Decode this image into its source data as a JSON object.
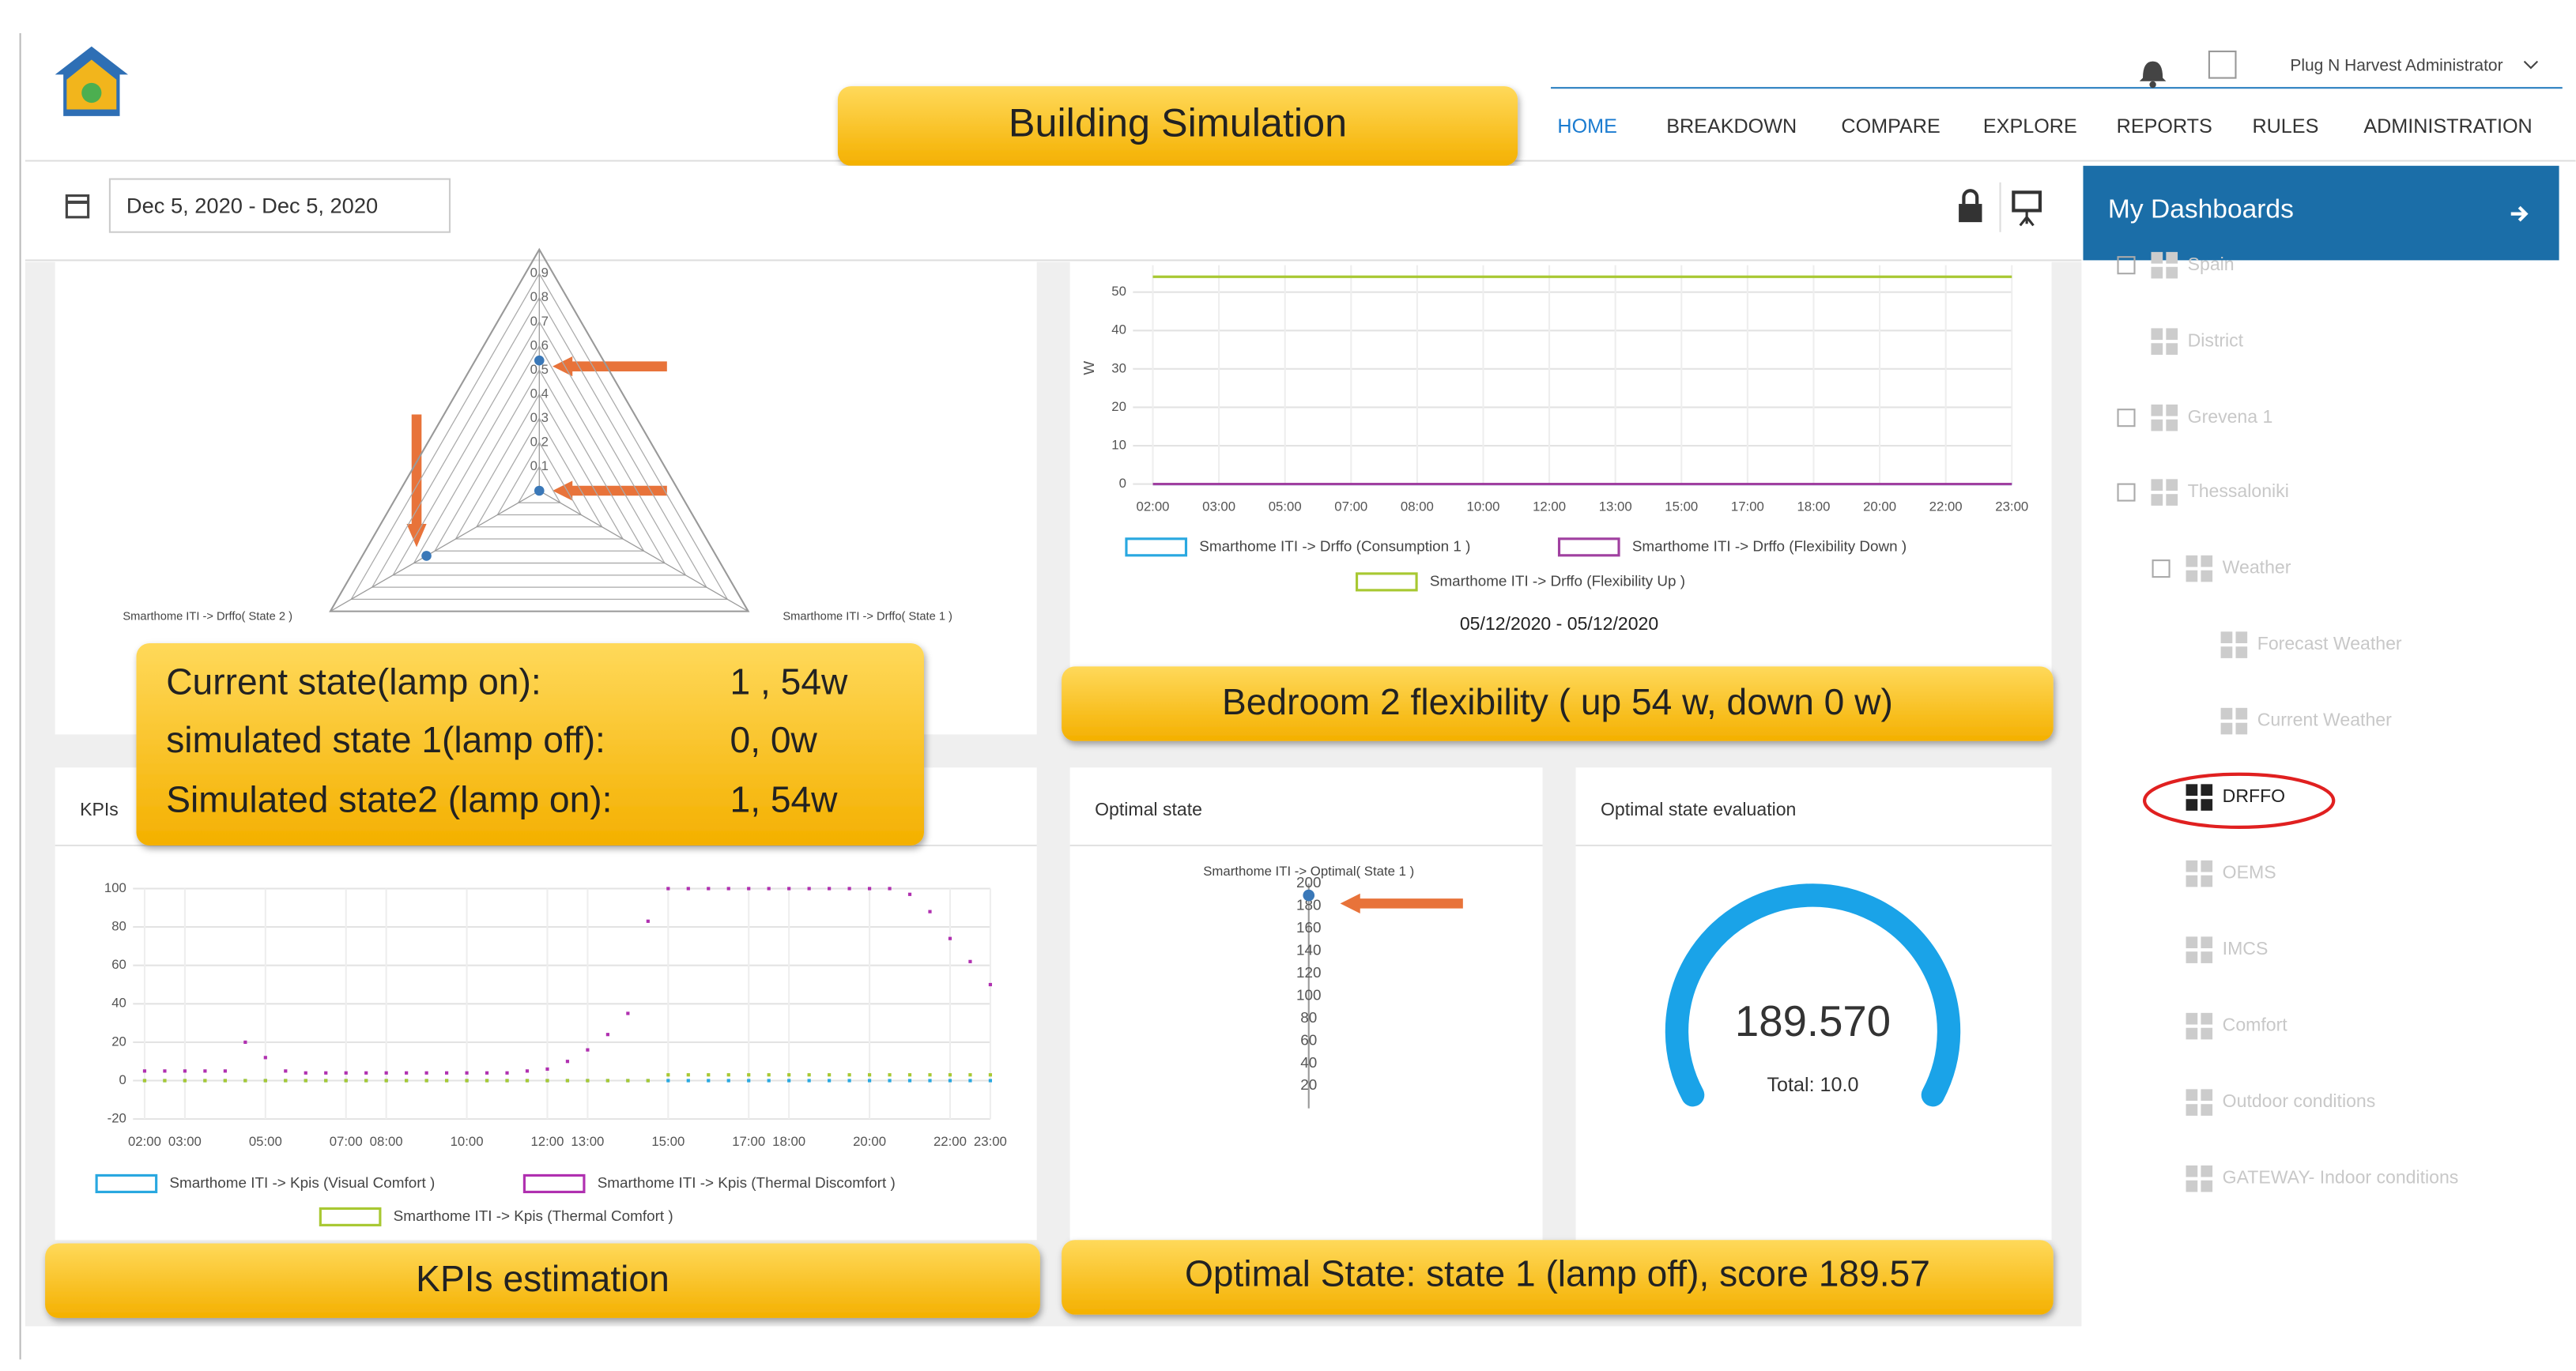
{
  "header": {
    "title": "Building Simulation",
    "user": "Plug N Harvest Administrator",
    "nav": [
      "HOME",
      "BREAKDOWN",
      "COMPARE",
      "EXPLORE",
      "REPORTS",
      "RULES",
      "ADMINISTRATION"
    ]
  },
  "toolbar": {
    "date_range": "Dec 5, 2020 - Dec 5, 2020"
  },
  "sidebar": {
    "title": "My Dashboards",
    "items": [
      "Spain",
      "District",
      "Grevena 1",
      "Thessaloniki",
      "Weather",
      "Forecast Weather",
      "Current Weather",
      "DRFFO",
      "OEMS",
      "IMCS",
      "Comfort",
      "Outdoor conditions",
      "GATEWAY- Indoor conditions"
    ]
  },
  "radar": {
    "categories": [
      null,
      "Smarthome ITI -> Drffo( State 1 )",
      "Smarthome ITI -> Drffo( State 2 )"
    ],
    "values": [
      0.54,
      0,
      0.54
    ],
    "color": "#3a78b8",
    "rlim": [
      0,
      1
    ],
    "ticks": [
      0.1,
      0.2,
      0.3,
      0.4,
      0.5,
      0.6,
      0.7,
      0.8,
      0.9
    ]
  },
  "flex": {
    "y_label": "W",
    "subtitle": "05/12/2020 - 05/12/2020",
    "categories": [
      "02:00",
      "03:00",
      "05:00",
      "07:00",
      "08:00",
      "10:00",
      "12:00",
      "13:00",
      "15:00",
      "17:00",
      "18:00",
      "20:00",
      "22:00",
      "23:00"
    ],
    "ylim": [
      0,
      57
    ],
    "yticks": [
      0,
      10,
      20,
      30,
      40,
      50
    ],
    "series": [
      {
        "name": "Smarthome ITI -> Drffo (Consumption 1 )",
        "color": "#29a8e0",
        "values": [
          0,
          0,
          0,
          0,
          0,
          0,
          0,
          0,
          0,
          0,
          0,
          0,
          0,
          0
        ]
      },
      {
        "name": "Smarthome ITI -> Drffo (Flexibility Down )",
        "color": "#a040a0",
        "values": [
          0,
          0,
          0,
          0,
          0,
          0,
          0,
          0,
          0,
          0,
          0,
          0,
          0,
          0
        ]
      },
      {
        "name": "Smarthome ITI -> Drffo (Flexibility Up )",
        "color": "#a8c832",
        "values": [
          54,
          54,
          54,
          54,
          54,
          54,
          54,
          54,
          54,
          54,
          54,
          54,
          54,
          54
        ]
      }
    ]
  },
  "kpi": {
    "title": "KPIs",
    "x": [
      2,
      2.5,
      3,
      3.5,
      4,
      4.5,
      5,
      5.5,
      6,
      6.5,
      7,
      7.5,
      8,
      8.5,
      9,
      9.5,
      10,
      10.5,
      11,
      11.5,
      12,
      12.5,
      13,
      13.5,
      14,
      14.5,
      15,
      15.5,
      16,
      16.5,
      17,
      17.5,
      18,
      18.5,
      19,
      19.5,
      20,
      20.5,
      21,
      21.5,
      22,
      22.5,
      23
    ],
    "xlim": [
      2,
      23
    ],
    "xticks": [
      {
        "value": 2,
        "label": "02:00"
      },
      {
        "value": 3,
        "label": "03:00"
      },
      {
        "value": 5,
        "label": "05:00"
      },
      {
        "value": 7,
        "label": "07:00"
      },
      {
        "value": 8,
        "label": "08:00"
      },
      {
        "value": 10,
        "label": "10:00"
      },
      {
        "value": 12,
        "label": "12:00"
      },
      {
        "value": 13,
        "label": "13:00"
      },
      {
        "value": 15,
        "label": "15:00"
      },
      {
        "value": 17,
        "label": "17:00"
      },
      {
        "value": 18,
        "label": "18:00"
      },
      {
        "value": 20,
        "label": "20:00"
      },
      {
        "value": 22,
        "label": "22:00"
      },
      {
        "value": 23,
        "label": "23:00"
      }
    ],
    "ylim": [
      -20,
      100
    ],
    "yticks": [
      -20,
      0,
      20,
      40,
      60,
      80,
      100
    ],
    "series": [
      {
        "name": "Smarthome ITI -> Kpis (Visual Comfort )",
        "color": "#29a8e0",
        "values": [
          0,
          0,
          0,
          0,
          0,
          0,
          0,
          0,
          0,
          0,
          0,
          0,
          0,
          0,
          0,
          0,
          0,
          0,
          0,
          0,
          0,
          0,
          0,
          0,
          0,
          0,
          0,
          0,
          0,
          0,
          0,
          0,
          0,
          0,
          0,
          0,
          0,
          0,
          0,
          0,
          0,
          0,
          0
        ]
      },
      {
        "name": "Smarthome ITI -> Kpis (Thermal Discomfort )",
        "color": "#b030b0",
        "values": [
          5,
          5,
          5,
          5,
          5,
          20,
          12,
          5,
          4,
          4,
          4,
          4,
          4,
          4,
          4,
          4,
          4,
          4,
          4,
          5,
          6,
          10,
          16,
          24,
          35,
          83,
          100,
          100,
          100,
          100,
          100,
          100,
          100,
          100,
          100,
          100,
          100,
          100,
          97,
          88,
          74,
          62,
          50
        ]
      },
      {
        "name": "Smarthome ITI -> Kpis (Thermal Comfort )",
        "color": "#a8c832",
        "values": [
          0,
          0,
          0,
          0,
          0,
          0,
          0,
          0,
          0,
          0,
          0,
          0,
          0,
          0,
          0,
          0,
          0,
          0,
          0,
          0,
          0,
          0,
          0,
          0,
          0,
          0,
          3,
          3,
          3,
          3,
          3,
          3,
          3,
          3,
          3,
          3,
          3,
          3,
          3,
          3,
          3,
          3,
          3
        ]
      }
    ]
  },
  "optimal": {
    "title": "Optimal state",
    "axis_label": "Smarthome ITI -> Optimal( State 1 )",
    "value": 189.57,
    "color": "#3a78b8",
    "ylim": [
      0,
      200
    ],
    "yticks": [
      20,
      40,
      60,
      80,
      100,
      120,
      140,
      160,
      180,
      200
    ]
  },
  "gauge": {
    "title": "Optimal state evaluation",
    "value": 189.57,
    "value_label": "189.570",
    "total": "Total: 10.0",
    "color": "#1aa3e8"
  },
  "callouts": {
    "states": [
      [
        "Current state(lamp on):",
        "1 , 54w"
      ],
      [
        "simulated state 1(lamp off):",
        "0,  0w"
      ],
      [
        "Simulated state2 (lamp on):",
        "1, 54w"
      ]
    ],
    "flex": "Bedroom 2 flexibility ( up 54 w, down 0 w)",
    "kpi": "KPIs estimation",
    "optimal": "Optimal State: state 1  (lamp off), score 189.57"
  }
}
